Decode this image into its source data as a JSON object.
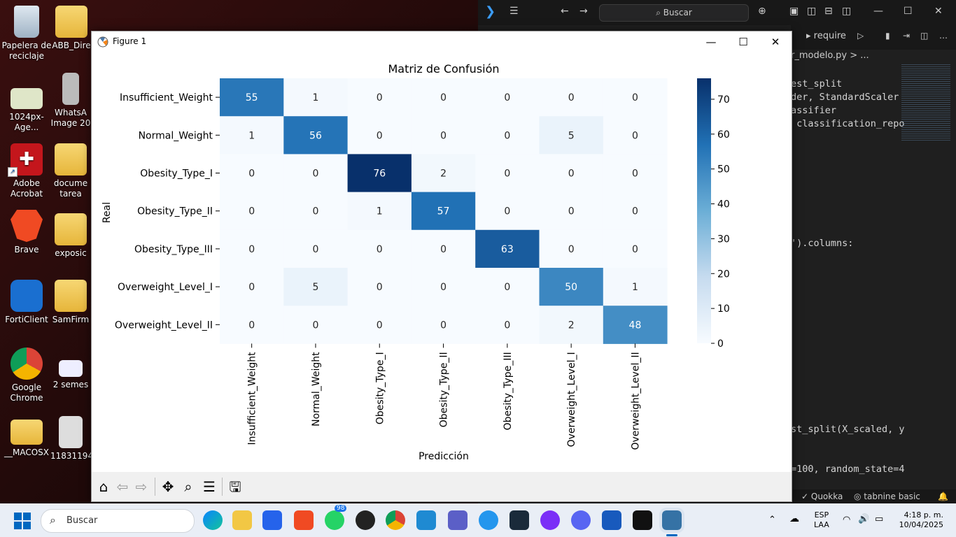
{
  "desktop": {
    "icons": [
      {
        "label": "Papelera de reciclaje"
      },
      {
        "label": "ABB_Dire"
      },
      {
        "label": "1024px-Age..."
      },
      {
        "label": "WhatsA Image 20"
      },
      {
        "label": "Adobe Acrobat"
      },
      {
        "label": "docume tarea"
      },
      {
        "label": "Brave"
      },
      {
        "label": "exposic"
      },
      {
        "label": "FortiClient"
      },
      {
        "label": "SamFirm"
      },
      {
        "label": "Google Chrome"
      },
      {
        "label": "2 semes"
      },
      {
        "label": "__MACOSX"
      },
      {
        "label": "11831194"
      }
    ]
  },
  "vscode": {
    "search": "Buscar",
    "tab": "require",
    "breadcrumb": "r_modelo.py > ...",
    "code_lines": [
      "est_split",
      "der, StandardScaler",
      "assifier",
      " classification_repo",
      "').columns:",
      "st_split(X_scaled, y",
      "=100, random_state=4"
    ],
    "status_left": "Quokka",
    "status_right": "tabnine basic"
  },
  "figure": {
    "window_title": "Figure 1",
    "toolbar": [
      "home-icon",
      "back-icon",
      "forward-icon",
      "pan-icon",
      "zoom-icon",
      "configure-icon",
      "save-icon"
    ]
  },
  "chart_data": {
    "type": "heatmap",
    "title": "Matriz de Confusión",
    "xlabel": "Predicción",
    "ylabel": "Real",
    "row_labels": [
      "Insufficient_Weight",
      "Normal_Weight",
      "Obesity_Type_I",
      "Obesity_Type_II",
      "Obesity_Type_III",
      "Overweight_Level_I",
      "Overweight_Level_II"
    ],
    "col_labels": [
      "Insufficient_Weight",
      "Normal_Weight",
      "Obesity_Type_I",
      "Obesity_Type_II",
      "Obesity_Type_III",
      "Overweight_Level_I",
      "Overweight_Level_II"
    ],
    "matrix": [
      [
        55,
        1,
        0,
        0,
        0,
        0,
        0
      ],
      [
        1,
        56,
        0,
        0,
        0,
        5,
        0
      ],
      [
        0,
        0,
        76,
        2,
        0,
        0,
        0
      ],
      [
        0,
        0,
        1,
        57,
        0,
        0,
        0
      ],
      [
        0,
        0,
        0,
        0,
        63,
        0,
        0
      ],
      [
        0,
        5,
        0,
        0,
        0,
        50,
        1
      ],
      [
        0,
        0,
        0,
        0,
        0,
        2,
        48
      ]
    ],
    "colorbar_ticks": [
      0,
      10,
      20,
      30,
      40,
      50,
      60,
      70
    ],
    "vmin": 0,
    "vmax": 76,
    "colormap": "Blues"
  },
  "taskbar": {
    "search": "Buscar",
    "whatsapp_badge": "98",
    "lang": "ESP",
    "lang2": "LAA",
    "time": "4:18 p. m.",
    "date": "10/04/2025"
  }
}
